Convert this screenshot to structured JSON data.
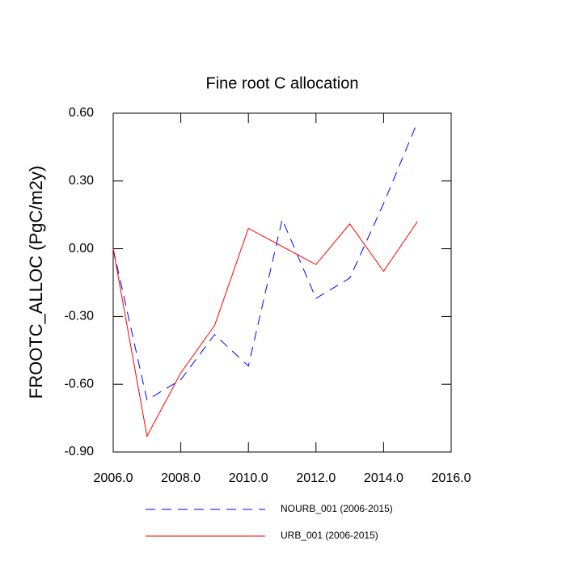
{
  "chart_data": {
    "type": "line",
    "title": "Fine root C allocation",
    "ylabel": "FROOTC_ALLOC  (PgC/m2y)",
    "x": [
      2006,
      2007,
      2008,
      2009,
      2010,
      2011,
      2012,
      2013,
      2014,
      2015
    ],
    "series": [
      {
        "name": "NOURB_001 (2006-2015)",
        "color": "#0000ff",
        "dashed": true,
        "values": [
          0.0,
          -0.67,
          -0.58,
          -0.38,
          -0.52,
          0.13,
          -0.22,
          -0.13,
          0.2,
          0.56
        ]
      },
      {
        "name": "URB_001 (2006-2015)",
        "color": "#ff0000",
        "dashed": false,
        "values": [
          0.0,
          -0.83,
          -0.55,
          -0.34,
          0.09,
          0.01,
          -0.07,
          0.11,
          -0.1,
          0.12
        ]
      }
    ],
    "xlim": [
      2006,
      2016
    ],
    "xticks": [
      {
        "value": 2006,
        "label": "2006.0"
      },
      {
        "value": 2008,
        "label": "2008.0"
      },
      {
        "value": 2010,
        "label": "2010.0"
      },
      {
        "value": 2012,
        "label": "2012.0"
      },
      {
        "value": 2014,
        "label": "2014.0"
      },
      {
        "value": 2016,
        "label": "2016.0"
      }
    ],
    "ylim": [
      -0.9,
      0.6
    ],
    "yticks": [
      {
        "value": -0.9,
        "label": "-0.90"
      },
      {
        "value": -0.6,
        "label": "-0.60"
      },
      {
        "value": -0.3,
        "label": "-0.30"
      },
      {
        "value": 0,
        "label": "0.00"
      },
      {
        "value": 0.3,
        "label": "0.30"
      },
      {
        "value": 0.6,
        "label": "0.60"
      }
    ],
    "grid": false,
    "legend": "bottom"
  }
}
